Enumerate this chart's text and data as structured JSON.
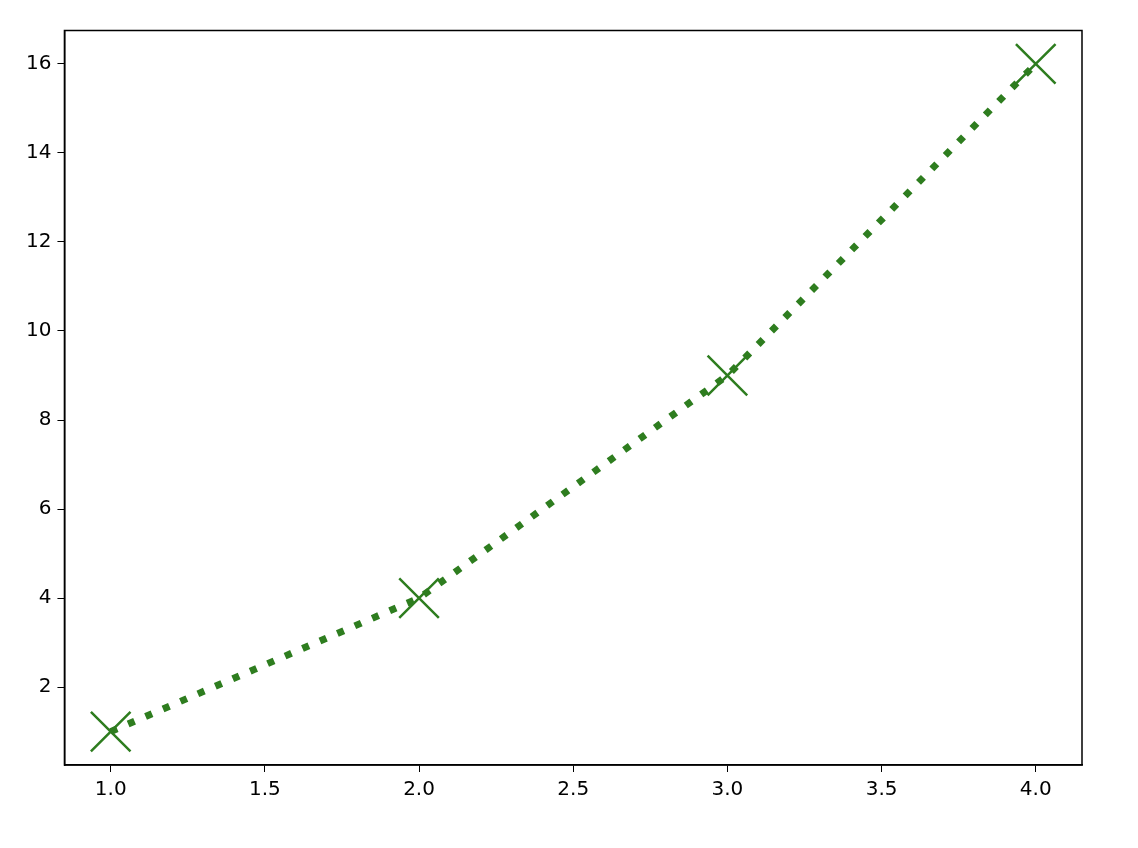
{
  "chart_data": {
    "type": "line",
    "x": [
      1,
      2,
      3,
      4
    ],
    "series": [
      {
        "color": "#2e7d1f",
        "values": [
          1,
          4,
          9,
          16
        ]
      }
    ],
    "xlim": [
      0.85,
      4.15
    ],
    "ylim": [
      0.25,
      16.75
    ],
    "xticks": [
      {
        "value": 1,
        "label": "1.0"
      },
      {
        "value": 1.5,
        "label": "1.5"
      },
      {
        "value": 2,
        "label": "2.0"
      },
      {
        "value": 2.5,
        "label": "2.5"
      },
      {
        "value": 3,
        "label": "3.0"
      },
      {
        "value": 3.5,
        "label": "3.5"
      },
      {
        "value": 4,
        "label": "4.0"
      }
    ],
    "yticks": [
      2,
      4,
      6,
      8,
      10,
      12,
      14,
      16
    ],
    "marker": "cross",
    "line_style": "dotted",
    "grid": false,
    "legend": false
  }
}
